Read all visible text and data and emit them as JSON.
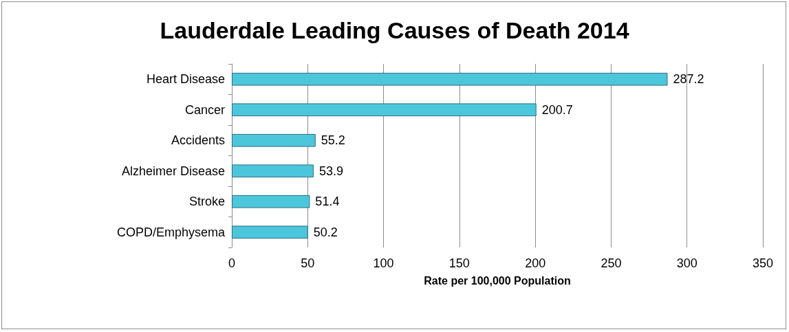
{
  "chart_data": {
    "type": "bar",
    "title": "Lauderdale Leading Causes of Death 2014",
    "xlabel": "Rate per 100,000 Population",
    "orientation": "horizontal",
    "categories": [
      "Heart Disease",
      "Cancer",
      "Accidents",
      "Alzheimer Disease",
      "Stroke",
      "COPD/Emphysema"
    ],
    "values": [
      287.2,
      200.7,
      55.2,
      53.9,
      51.4,
      50.2
    ],
    "color": "#4bc6da",
    "xlim": [
      0,
      350
    ],
    "xticks": [
      0,
      50,
      100,
      150,
      200,
      250,
      300,
      350
    ],
    "grid": "x",
    "data_labels": true
  }
}
